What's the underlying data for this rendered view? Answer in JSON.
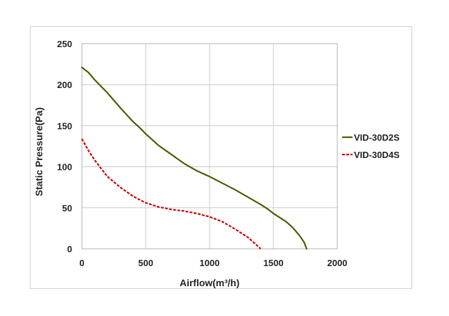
{
  "chart_data": {
    "type": "line",
    "title": "",
    "xlabel": "Airflow(m³/h)",
    "ylabel": "Static Pressure(Pa)",
    "xlim": [
      0,
      2000
    ],
    "ylim": [
      0,
      250
    ],
    "x_ticks": [
      0,
      500,
      1000,
      1500,
      2000
    ],
    "y_ticks": [
      0,
      50,
      100,
      150,
      200,
      250
    ],
    "x_tick_labels": [
      "0",
      "500",
      "1000",
      "1500",
      "2000"
    ],
    "y_tick_labels": [
      "0",
      "50",
      "100",
      "150",
      "200",
      "250"
    ],
    "grid": true,
    "legend_position": "right",
    "series": [
      {
        "name": "VID-30D2S",
        "color": "#4d5b00",
        "dash": "solid",
        "points": [
          [
            0,
            221
          ],
          [
            50,
            215
          ],
          [
            100,
            206
          ],
          [
            150,
            198
          ],
          [
            200,
            190
          ],
          [
            300,
            172
          ],
          [
            400,
            155
          ],
          [
            450,
            148
          ],
          [
            500,
            140
          ],
          [
            600,
            126
          ],
          [
            700,
            115
          ],
          [
            800,
            104
          ],
          [
            900,
            95
          ],
          [
            1000,
            88
          ],
          [
            1100,
            80
          ],
          [
            1200,
            72
          ],
          [
            1300,
            63
          ],
          [
            1400,
            54
          ],
          [
            1460,
            48
          ],
          [
            1500,
            43
          ],
          [
            1600,
            33
          ],
          [
            1650,
            26
          ],
          [
            1700,
            17
          ],
          [
            1740,
            8
          ],
          [
            1760,
            0
          ]
        ]
      },
      {
        "name": "VID-30D4S",
        "color": "#cc0000",
        "dash": "dashed",
        "points": [
          [
            0,
            134
          ],
          [
            50,
            120
          ],
          [
            100,
            108
          ],
          [
            150,
            98
          ],
          [
            200,
            88
          ],
          [
            300,
            75
          ],
          [
            400,
            64
          ],
          [
            500,
            56
          ],
          [
            600,
            51
          ],
          [
            700,
            48
          ],
          [
            800,
            46
          ],
          [
            900,
            43
          ],
          [
            1000,
            39
          ],
          [
            1100,
            33
          ],
          [
            1200,
            24
          ],
          [
            1300,
            14
          ],
          [
            1350,
            7
          ],
          [
            1400,
            0
          ]
        ]
      }
    ]
  }
}
